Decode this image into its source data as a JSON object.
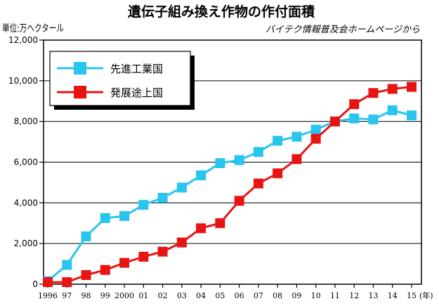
{
  "chart_data": {
    "type": "line",
    "title": "遺伝子組み換え作物の作付面積",
    "unit_label": "単位:万ヘクタール",
    "source": "バイテク情報普及会ホームページから",
    "x": [
      "1996",
      "97",
      "98",
      "99",
      "2000",
      "01",
      "02",
      "03",
      "04",
      "05",
      "06",
      "07",
      "08",
      "09",
      "10",
      "11",
      "12",
      "13",
      "14",
      "15"
    ],
    "x_unit": "(年)",
    "yticks": [
      "0",
      "2,000",
      "4,000",
      "6,000",
      "8,000",
      "10,000",
      "12,000"
    ],
    "ylim": [
      0,
      12000
    ],
    "grid": true,
    "legend_position": "top-left",
    "series": [
      {
        "name": "先進工業国",
        "color": "#29c5ee",
        "values": [
          150,
          950,
          2350,
          3250,
          3350,
          3900,
          4250,
          4750,
          5350,
          5950,
          6100,
          6500,
          7050,
          7250,
          7600,
          8000,
          8150,
          8100,
          8550,
          8300
        ]
      },
      {
        "name": "発展途上国",
        "color": "#e81414",
        "values": [
          100,
          100,
          450,
          700,
          1050,
          1350,
          1600,
          2050,
          2750,
          3000,
          4100,
          4950,
          5450,
          6150,
          7150,
          8000,
          8850,
          9400,
          9600,
          9700
        ]
      }
    ]
  }
}
